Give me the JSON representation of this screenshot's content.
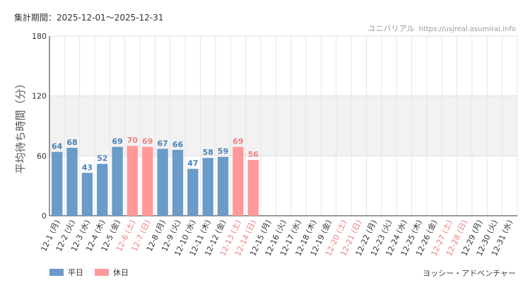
{
  "header": {
    "period": "集計期間：2025-12-01〜2025-12-31",
    "site_name": "ユニバリアル",
    "site_url": "https://usjreal.asumirai.info"
  },
  "footer": {
    "subtitle": "ヨッシー・アドベンチャー"
  },
  "legend": [
    {
      "label": "平日",
      "color": "#6b9bc9"
    },
    {
      "label": "休日",
      "color": "#ff9999"
    }
  ],
  "colors": {
    "weekday_bar": "#6b9bc9",
    "holiday_bar": "#ff9999",
    "weekday_label": "#4a7fb5",
    "holiday_label": "#f08080",
    "band": "#f2f2f2"
  },
  "chart_data": {
    "type": "bar",
    "ylabel": "平均待ち時間（分）",
    "xlabel": "",
    "ylim": [
      0,
      180
    ],
    "yticks": [
      0,
      60,
      120,
      180
    ],
    "shaded_band": [
      60,
      120
    ],
    "grid": true,
    "legend_position": "bottom-left",
    "categories": [
      "12-1 (月)",
      "12-2 (火)",
      "12-3 (水)",
      "12-4 (木)",
      "12-5 (金)",
      "12-6 (土)",
      "12-7 (日)",
      "12-8 (月)",
      "12-9 (火)",
      "12-10 (水)",
      "12-11 (木)",
      "12-12 (金)",
      "12-13 (土)",
      "12-14 (日)",
      "12-15 (月)",
      "12-16 (火)",
      "12-17 (水)",
      "12-18 (木)",
      "12-19 (金)",
      "12-20 (土)",
      "12-21 (日)",
      "12-22 (月)",
      "12-23 (火)",
      "12-24 (水)",
      "12-25 (木)",
      "12-26 (金)",
      "12-27 (土)",
      "12-28 (日)",
      "12-29 (月)",
      "12-30 (火)",
      "12-31 (水)"
    ],
    "holiday": [
      false,
      false,
      false,
      false,
      false,
      true,
      true,
      false,
      false,
      false,
      false,
      false,
      true,
      true,
      false,
      false,
      false,
      false,
      false,
      true,
      true,
      false,
      false,
      false,
      false,
      false,
      true,
      true,
      false,
      false,
      false
    ],
    "series": [
      {
        "name": "平日",
        "values": [
          64,
          68,
          43,
          52,
          69,
          null,
          null,
          67,
          66,
          47,
          58,
          59,
          null,
          null,
          null,
          null,
          null,
          null,
          null,
          null,
          null,
          null,
          null,
          null,
          null,
          null,
          null,
          null,
          null,
          null,
          null
        ]
      },
      {
        "name": "休日",
        "values": [
          null,
          null,
          null,
          null,
          null,
          70,
          69,
          null,
          null,
          null,
          null,
          null,
          69,
          56,
          null,
          null,
          null,
          null,
          null,
          null,
          null,
          null,
          null,
          null,
          null,
          null,
          null,
          null,
          null,
          null,
          null
        ]
      }
    ]
  }
}
